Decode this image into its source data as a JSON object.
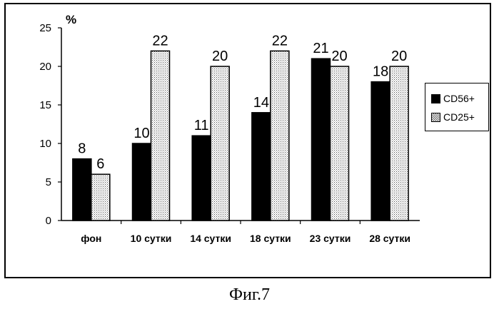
{
  "chart_data": {
    "type": "bar",
    "title": "",
    "ylabel": "%",
    "xlabel": "",
    "ylim": [
      0,
      25
    ],
    "yticks": [
      0,
      5,
      10,
      15,
      20,
      25
    ],
    "categories": [
      "фон",
      "10 сутки",
      "14 сутки",
      "18 сутки",
      "23 сутки",
      "28 сутки"
    ],
    "series": [
      {
        "name": "CD56+",
        "values": [
          8,
          10,
          11,
          14,
          21,
          18
        ],
        "color": "#000000",
        "pattern": "solid"
      },
      {
        "name": "CD25+",
        "values": [
          6,
          22,
          20,
          22,
          20,
          20
        ],
        "color": "#ffffff",
        "pattern": "dotted"
      }
    ],
    "data_labels": true,
    "legend_position": "right",
    "grid": false
  },
  "caption": "Фиг.7"
}
